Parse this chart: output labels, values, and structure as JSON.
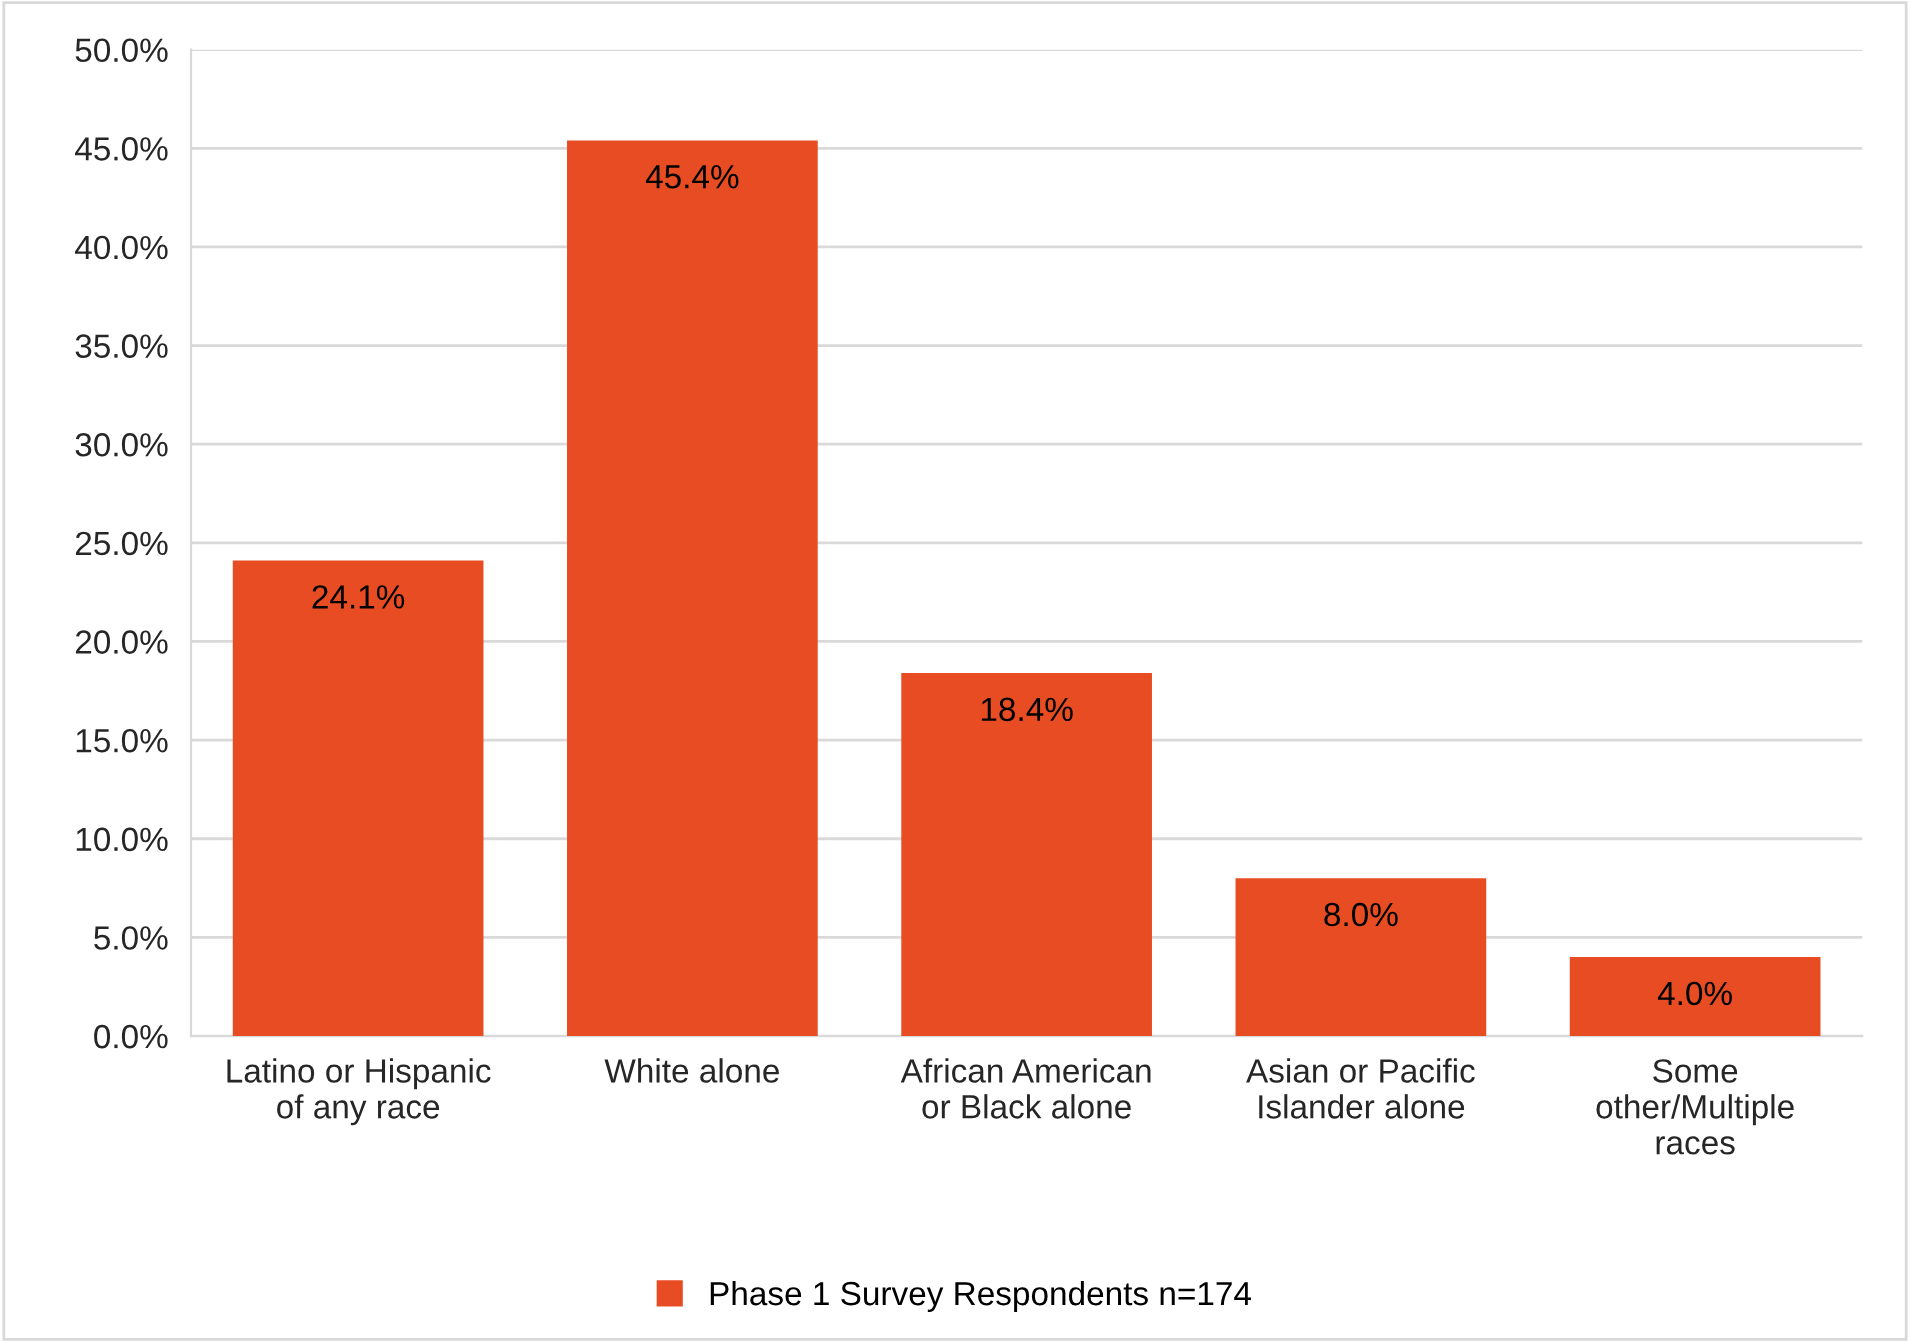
{
  "chart_data": {
    "type": "bar",
    "categories": [
      "Latino or Hispanic\nof any race",
      "White alone",
      "African American\nor Black alone",
      "Asian or Pacific\nIslander alone",
      "Some\nother/Multiple\nraces"
    ],
    "series": [
      {
        "name": "Phase 1 Survey Respondents n=174",
        "color": "#e84c22",
        "values": [
          24.1,
          45.4,
          18.4,
          8.0,
          4.0
        ],
        "value_labels": [
          "24.1%",
          "45.4%",
          "18.4%",
          "8.0%",
          "4.0%"
        ]
      }
    ],
    "ylim": [
      0,
      50
    ],
    "yticks": [
      {
        "value": 0,
        "label": "0.0%"
      },
      {
        "value": 5,
        "label": "5.0%"
      },
      {
        "value": 10,
        "label": "10.0%"
      },
      {
        "value": 15,
        "label": "15.0%"
      },
      {
        "value": 20,
        "label": "20.0%"
      },
      {
        "value": 25,
        "label": "25.0%"
      },
      {
        "value": 30,
        "label": "30.0%"
      },
      {
        "value": 35,
        "label": "35.0%"
      },
      {
        "value": 40,
        "label": "40.0%"
      },
      {
        "value": 45,
        "label": "45.0%"
      },
      {
        "value": 50,
        "label": "50.0%"
      }
    ],
    "grid": "y",
    "legend": "bottom"
  }
}
